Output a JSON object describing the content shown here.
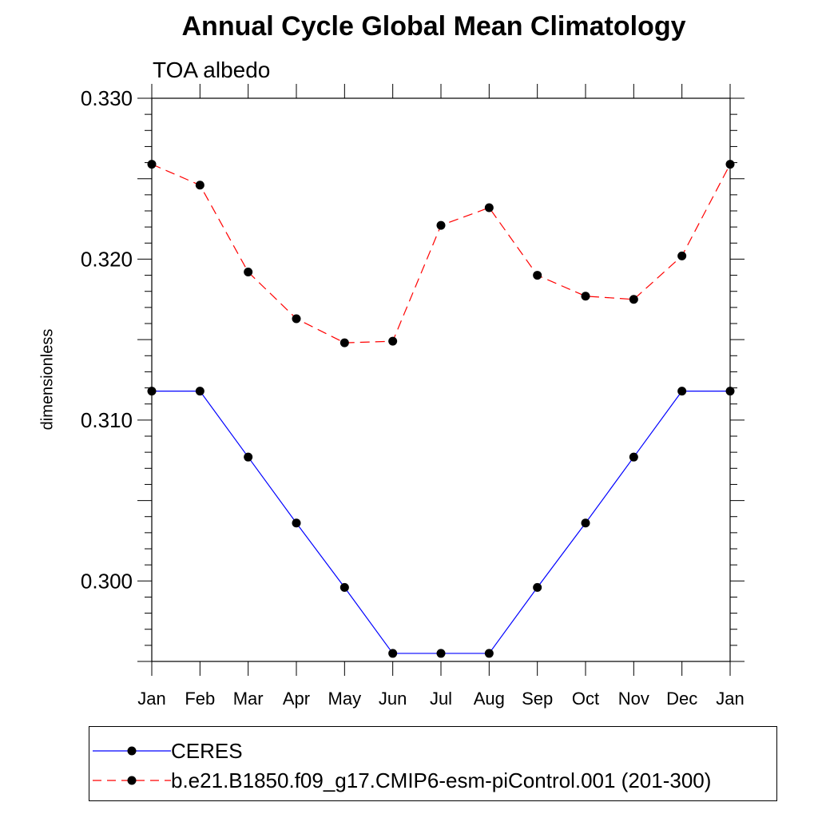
{
  "chart_data": {
    "type": "line",
    "title": "Annual Cycle Global Mean Climatology",
    "subtitle": "TOA albedo",
    "ylabel": "dimensionless",
    "xlabel": "",
    "categories": [
      "Jan",
      "Feb",
      "Mar",
      "Apr",
      "May",
      "Jun",
      "Jul",
      "Aug",
      "Sep",
      "Oct",
      "Nov",
      "Dec",
      "Jan"
    ],
    "ylim": [
      0.295,
      0.33
    ],
    "yticks": [
      "0.300",
      "0.310",
      "0.320",
      "0.330"
    ],
    "series": [
      {
        "name": "CERES",
        "color": "#0000ff",
        "dash": "solid",
        "values": [
          0.3118,
          0.3118,
          0.3077,
          0.3036,
          0.2996,
          0.2955,
          0.2955,
          0.2955,
          0.2996,
          0.3036,
          0.3077,
          0.3118,
          0.3118
        ]
      },
      {
        "name": "b.e21.B1850.f09_g17.CMIP6-esm-piControl.001 (201-300)",
        "color": "#ff0000",
        "dash": "dashed",
        "values": [
          0.3259,
          0.3246,
          0.3192,
          0.3163,
          0.3148,
          0.3149,
          0.3221,
          0.3232,
          0.319,
          0.3177,
          0.3175,
          0.3202,
          0.3259
        ]
      }
    ],
    "grid": false,
    "legend_position": "bottom"
  }
}
